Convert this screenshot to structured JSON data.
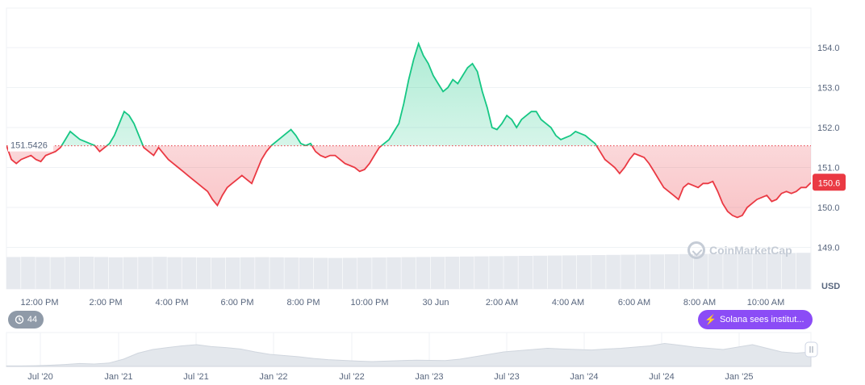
{
  "chart_data": {
    "type": "area",
    "baseline_price": 151.5426,
    "baseline_label": "151.5426",
    "current_price_label": "150.6",
    "currency_label": "USD",
    "ylim": [
      148.95,
      155.0
    ],
    "y_ticks": [
      "149.0",
      "150.0",
      "151.0",
      "152.0",
      "153.0",
      "154.0"
    ],
    "x_tick_labels": [
      "12:00 PM",
      "2:00 PM",
      "4:00 PM",
      "6:00 PM",
      "8:00 PM",
      "10:00 PM",
      "30 Jun",
      "2:00 AM",
      "4:00 AM",
      "6:00 AM",
      "8:00 AM",
      "10:00 AM"
    ],
    "series": [
      {
        "values": [
          151.55,
          151.2,
          151.1,
          151.2,
          151.25,
          151.3,
          151.2,
          151.15,
          151.3,
          151.35,
          151.4,
          151.5,
          151.7,
          151.9,
          151.8,
          151.7,
          151.65,
          151.6,
          151.55,
          151.4,
          151.5,
          151.6,
          151.8,
          152.1,
          152.4,
          152.3,
          152.1,
          151.8,
          151.5,
          151.4,
          151.3,
          151.5,
          151.35,
          151.2,
          151.1,
          151.0,
          150.9,
          150.8,
          150.7,
          150.6,
          150.5,
          150.4,
          150.2,
          150.05,
          150.3,
          150.5,
          150.6,
          150.7,
          150.8,
          150.7,
          150.6,
          150.9,
          151.2,
          151.4,
          151.55,
          151.65,
          151.75,
          151.85,
          151.95,
          151.8,
          151.6,
          151.55,
          151.6,
          151.4,
          151.3,
          151.25,
          151.3,
          151.3,
          151.2,
          151.1,
          151.05,
          151.0,
          150.9,
          150.95,
          151.1,
          151.3,
          151.5,
          151.6,
          151.7,
          151.9,
          152.1,
          152.6,
          153.2,
          153.7,
          154.1,
          153.8,
          153.6,
          153.3,
          153.1,
          152.9,
          153.0,
          153.2,
          153.1,
          153.3,
          153.5,
          153.6,
          153.4,
          152.9,
          152.5,
          152.0,
          151.95,
          152.1,
          152.3,
          152.2,
          152.0,
          152.2,
          152.3,
          152.4,
          152.4,
          152.2,
          152.1,
          152.0,
          151.8,
          151.7,
          151.75,
          151.8,
          151.9,
          151.85,
          151.8,
          151.7,
          151.6,
          151.4,
          151.2,
          151.1,
          151.0,
          150.85,
          151.0,
          151.2,
          151.35,
          151.3,
          151.25,
          151.1,
          150.9,
          150.7,
          150.5,
          150.4,
          150.3,
          150.2,
          150.5,
          150.6,
          150.55,
          150.5,
          150.6,
          150.6,
          150.65,
          150.4,
          150.1,
          149.9,
          149.8,
          149.75,
          149.8,
          150.0,
          150.1,
          150.2,
          150.25,
          150.3,
          150.15,
          150.2,
          150.35,
          150.4,
          150.35,
          150.4,
          150.5,
          150.5,
          150.62
        ]
      }
    ],
    "volume_values": [
      0.48,
      0.49,
      0.48,
      0.47,
      0.49,
      0.5,
      0.48,
      0.46,
      0.47,
      0.48,
      0.49,
      0.47,
      0.46,
      0.45,
      0.44,
      0.45,
      0.46,
      0.47,
      0.46,
      0.45,
      0.44,
      0.43,
      0.42,
      0.43,
      0.44,
      0.45,
      0.46,
      0.47,
      0.48,
      0.49,
      0.5,
      0.51,
      0.52,
      0.53,
      0.54,
      0.55,
      0.56,
      0.57,
      0.58,
      0.59,
      0.6,
      0.61,
      0.62,
      0.63,
      0.64,
      0.65,
      0.66,
      0.67,
      0.68,
      0.69,
      0.7,
      0.71,
      0.72,
      0.73,
      0.74
    ],
    "overview": {
      "x_tick_labels": [
        "Jul '20",
        "Jan '21",
        "Jul '21",
        "Jan '22",
        "Jul '22",
        "Jan '23",
        "Jul '23",
        "Jan '24",
        "Jul '24",
        "Jan '25"
      ],
      "values": [
        0.02,
        0.02,
        0.03,
        0.05,
        0.08,
        0.12,
        0.1,
        0.14,
        0.3,
        0.55,
        0.7,
        0.78,
        0.85,
        0.9,
        0.82,
        0.78,
        0.72,
        0.6,
        0.5,
        0.45,
        0.4,
        0.33,
        0.28,
        0.25,
        0.22,
        0.2,
        0.22,
        0.24,
        0.26,
        0.25,
        0.24,
        0.3,
        0.4,
        0.5,
        0.6,
        0.65,
        0.7,
        0.75,
        0.72,
        0.7,
        0.68,
        0.72,
        0.75,
        0.8,
        0.85,
        0.95,
        0.88,
        0.8,
        0.75,
        0.7,
        0.8,
        0.9,
        0.75,
        0.6,
        0.55,
        0.6
      ]
    }
  },
  "colors": {
    "up": "#16c784",
    "down": "#ea3943",
    "grid": "#eff2f5",
    "axis_text": "#58667e",
    "volume": "#e6e9ee",
    "news": "#8b4cf6"
  },
  "badges": {
    "event_count": "44",
    "news_text": "Solana sees institut..."
  },
  "watermark": "CoinMarketCap",
  "icons": {
    "history": "history-icon",
    "bolt": "bolt-icon",
    "logo": "coinmarketcap-logo-icon",
    "handle": "range-handle-icon"
  }
}
